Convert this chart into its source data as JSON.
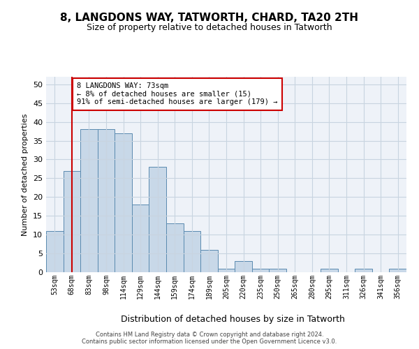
{
  "title": "8, LANGDONS WAY, TATWORTH, CHARD, TA20 2TH",
  "subtitle": "Size of property relative to detached houses in Tatworth",
  "xlabel": "Distribution of detached houses by size in Tatworth",
  "ylabel": "Number of detached properties",
  "bar_labels": [
    "53sqm",
    "68sqm",
    "83sqm",
    "98sqm",
    "114sqm",
    "129sqm",
    "144sqm",
    "159sqm",
    "174sqm",
    "189sqm",
    "205sqm",
    "220sqm",
    "235sqm",
    "250sqm",
    "265sqm",
    "280sqm",
    "295sqm",
    "311sqm",
    "326sqm",
    "341sqm",
    "356sqm"
  ],
  "bar_values": [
    11,
    27,
    38,
    38,
    37,
    18,
    28,
    13,
    11,
    6,
    1,
    3,
    1,
    1,
    0,
    0,
    1,
    0,
    1,
    0,
    1
  ],
  "bar_color": "#c8d8e8",
  "bar_edge_color": "#5a8ab0",
  "vline_x": 1,
  "vline_color": "#cc0000",
  "annotation_text": "8 LANGDONS WAY: 73sqm\n← 8% of detached houses are smaller (15)\n91% of semi-detached houses are larger (179) →",
  "annotation_box_color": "#ffffff",
  "annotation_box_edge": "#cc0000",
  "ylim": [
    0,
    52
  ],
  "yticks": [
    0,
    5,
    10,
    15,
    20,
    25,
    30,
    35,
    40,
    45,
    50
  ],
  "grid_color": "#c8d4e0",
  "bg_color": "#eef2f8",
  "footer": "Contains HM Land Registry data © Crown copyright and database right 2024.\nContains public sector information licensed under the Open Government Licence v3.0."
}
